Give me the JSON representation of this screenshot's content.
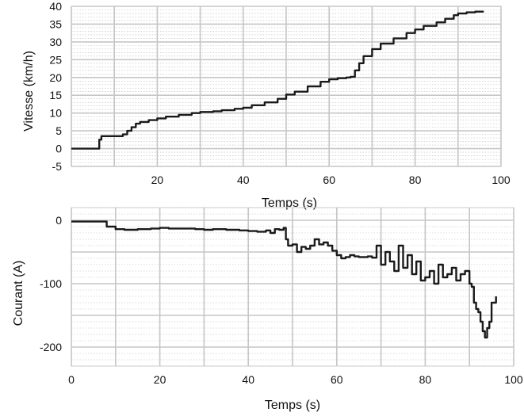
{
  "chart_data": [
    {
      "type": "line",
      "xlabel": "Temps (s)",
      "ylabel": "Vitesse (km/h)",
      "xlim": [
        0,
        100
      ],
      "ylim": [
        -5,
        40
      ],
      "xticks": [
        20,
        40,
        60,
        80,
        100
      ],
      "yticks": [
        -5,
        0,
        5,
        10,
        15,
        20,
        25,
        30,
        35,
        40
      ],
      "grid": true,
      "series": [
        {
          "x": [
            0,
            6,
            6.5,
            7,
            8,
            10,
            12,
            13,
            14,
            15,
            16,
            18,
            20,
            22,
            25,
            28,
            30,
            33,
            35,
            38,
            40,
            42,
            45,
            48,
            50,
            52,
            55,
            58,
            60,
            62,
            64,
            65,
            66,
            67,
            68,
            70,
            72,
            75,
            78,
            80,
            82,
            85,
            87,
            89,
            90,
            92,
            94,
            96
          ],
          "y": [
            0,
            0,
            2.5,
            3.5,
            3.5,
            3.5,
            4,
            5,
            6,
            7,
            7.5,
            8,
            8.5,
            9,
            9.5,
            10,
            10.3,
            10.5,
            10.8,
            11.2,
            11.5,
            12.2,
            13,
            14,
            15.2,
            16,
            17.5,
            18.8,
            19.5,
            19.8,
            20,
            20.2,
            22,
            24,
            26,
            28,
            29.5,
            31,
            32.5,
            33.5,
            34.5,
            35.5,
            36.5,
            37.5,
            38,
            38.3,
            38.5,
            38.5
          ]
        }
      ]
    },
    {
      "type": "line",
      "xlabel": "Temps (s)",
      "ylabel": "Courant (A)",
      "xlim": [
        0,
        100
      ],
      "ylim": [
        -230,
        20
      ],
      "xticks": [
        0,
        20,
        40,
        60,
        80,
        100
      ],
      "yticks": [
        0,
        -100,
        -200
      ],
      "grid": true,
      "series": [
        {
          "x": [
            0,
            5,
            6,
            8,
            10,
            12,
            15,
            18,
            20,
            22,
            25,
            28,
            30,
            32,
            35,
            38,
            40,
            42,
            44,
            45,
            46,
            47,
            48,
            48.5,
            49,
            50,
            51,
            52,
            53,
            54,
            55,
            56,
            57,
            58,
            59,
            60,
            61,
            62,
            63,
            64,
            65,
            66,
            67,
            68,
            69,
            70,
            71,
            72,
            73,
            74,
            75,
            76,
            77,
            78,
            79,
            80,
            81,
            82,
            83,
            84,
            85,
            86,
            87,
            88,
            89,
            90,
            90.5,
            91,
            91.5,
            92,
            92.5,
            93,
            93.5,
            94,
            94.5,
            95,
            96
          ],
          "y": [
            -2,
            -2,
            -2,
            -10,
            -14,
            -15,
            -14,
            -13,
            -12,
            -13,
            -13,
            -14,
            -15,
            -14,
            -15,
            -16,
            -17,
            -18,
            -16,
            -20,
            -14,
            -15,
            -12,
            -30,
            -40,
            -38,
            -50,
            -42,
            -45,
            -40,
            -30,
            -38,
            -35,
            -40,
            -48,
            -55,
            -60,
            -58,
            -55,
            -57,
            -58,
            -58,
            -57,
            -59,
            -40,
            -70,
            -50,
            -65,
            -80,
            -40,
            -75,
            -55,
            -85,
            -65,
            -95,
            -90,
            -80,
            -100,
            -70,
            -90,
            -85,
            -75,
            -95,
            -85,
            -80,
            -100,
            -105,
            -130,
            -140,
            -145,
            -160,
            -175,
            -185,
            -170,
            -160,
            -130,
            -120
          ]
        }
      ]
    }
  ]
}
